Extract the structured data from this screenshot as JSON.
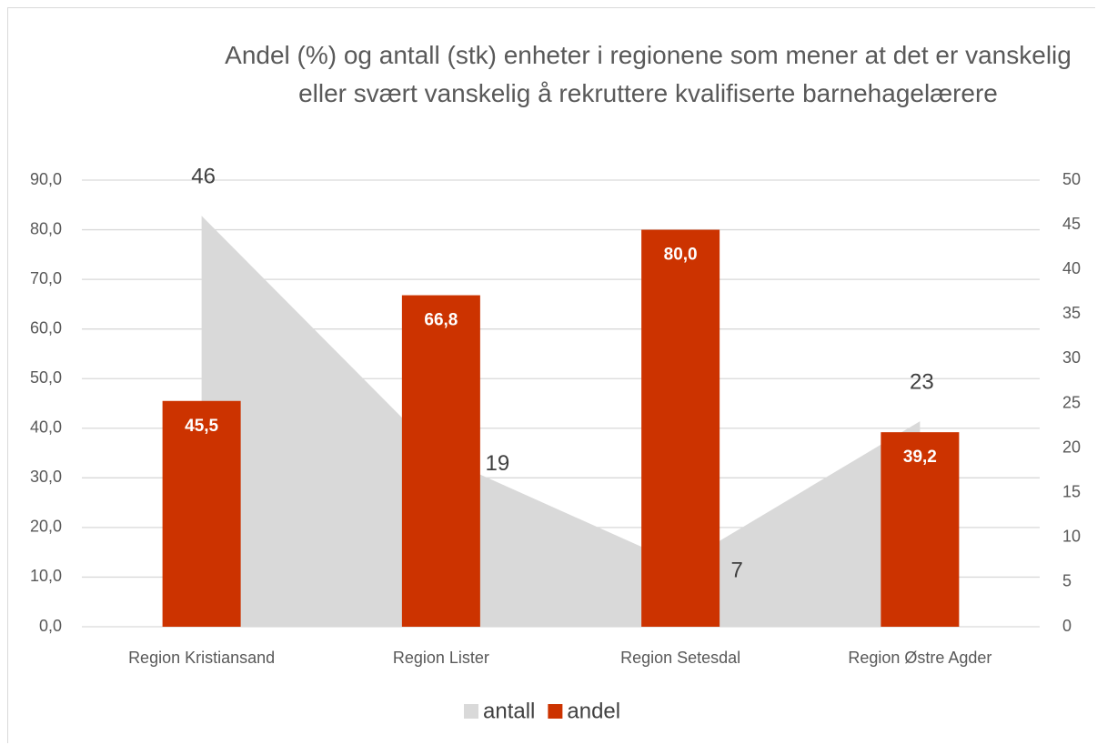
{
  "chart_data": {
    "type": "combo",
    "title": "Andel (%) og antall (stk) enheter i regionene som mener at det er vanskelig eller svært vanskelig å rekruttere kvalifiserte barnehagelærere",
    "categories": [
      "Region Kristiansand",
      "Region Lister",
      "Region Setesdal",
      "Region Østre Agder"
    ],
    "series": [
      {
        "name": "antall",
        "type": "area",
        "color": "#d9d9d9",
        "axis": "y2",
        "values": [
          46,
          19,
          7,
          23
        ]
      },
      {
        "name": "andel",
        "type": "bar",
        "color": "#cc3300",
        "values": [
          45.5,
          66.8,
          80.0,
          39.2
        ],
        "value_labels": [
          "45,5",
          "66,8",
          "80,0",
          "39,2"
        ]
      }
    ],
    "ylim": [
      0,
      90
    ],
    "yticks": [
      {
        "value": 0,
        "label": "0,0"
      },
      {
        "value": 10,
        "label": "10,0"
      },
      {
        "value": 20,
        "label": "20,0"
      },
      {
        "value": 30,
        "label": "30,0"
      },
      {
        "value": 40,
        "label": "40,0"
      },
      {
        "value": 50,
        "label": "50,0"
      },
      {
        "value": 60,
        "label": "60,0"
      },
      {
        "value": 70,
        "label": "70,0"
      },
      {
        "value": 80,
        "label": "80,0"
      },
      {
        "value": 90,
        "label": "90,0"
      }
    ],
    "y2lim": [
      0,
      50
    ],
    "y2ticks": [
      0,
      5,
      10,
      15,
      20,
      25,
      30,
      35,
      40,
      45,
      50
    ],
    "grid": true,
    "legend": "bottom"
  }
}
